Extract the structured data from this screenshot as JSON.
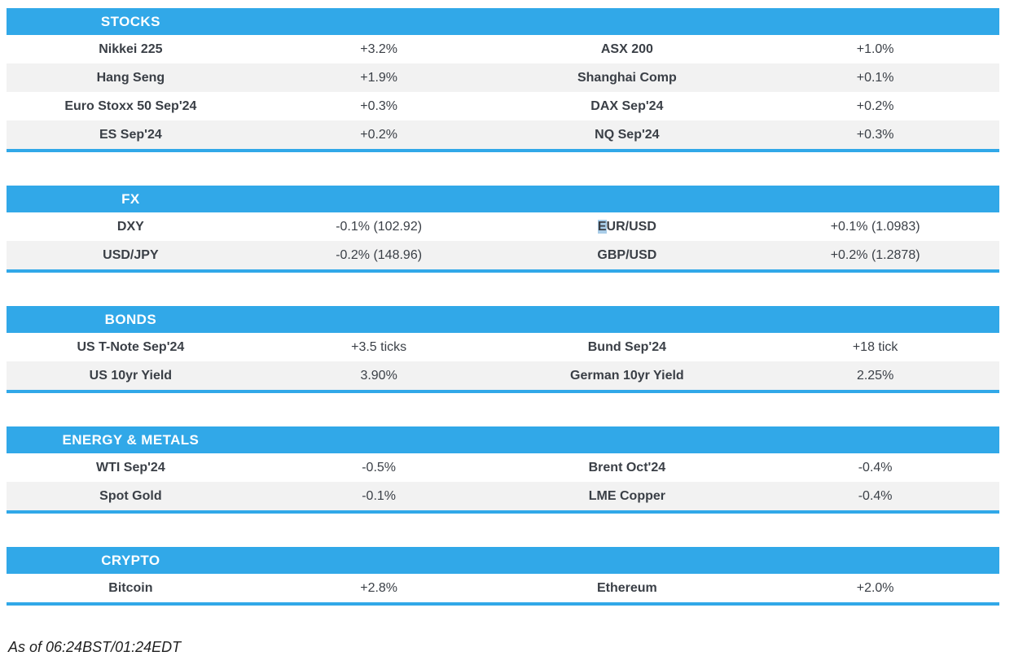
{
  "colors": {
    "accent": "#31a8e8",
    "stripe": "#f2f2f2",
    "text": "#3a3f46",
    "header_text": "#ffffff",
    "selection_highlight": "#a9cde8"
  },
  "sections": [
    {
      "title": "STOCKS",
      "rows": [
        [
          {
            "label": "Nikkei 225",
            "value": "+3.2%"
          },
          {
            "label": "ASX 200",
            "value": "+1.0%"
          }
        ],
        [
          {
            "label": "Hang Seng",
            "value": "+1.9%"
          },
          {
            "label": "Shanghai Comp",
            "value": "+0.1%"
          }
        ],
        [
          {
            "label": "Euro Stoxx 50 Sep'24",
            "value": "+0.3%"
          },
          {
            "label": "DAX Sep'24",
            "value": "+0.2%"
          }
        ],
        [
          {
            "label": "ES Sep'24",
            "value": "+0.2%"
          },
          {
            "label": "NQ Sep'24",
            "value": "+0.3%"
          }
        ]
      ]
    },
    {
      "title": "FX",
      "rows": [
        [
          {
            "label": "DXY",
            "value": "-0.1% (102.92)"
          },
          {
            "label": "EUR/USD",
            "value": "+0.1% (1.0983)",
            "selected_prefix": "E"
          }
        ],
        [
          {
            "label": "USD/JPY",
            "value": "-0.2% (148.96)"
          },
          {
            "label": "GBP/USD",
            "value": "+0.2% (1.2878)"
          }
        ]
      ]
    },
    {
      "title": "BONDS",
      "rows": [
        [
          {
            "label": "US T-Note Sep'24",
            "value": "+3.5 ticks"
          },
          {
            "label": "Bund Sep'24",
            "value": "+18 tick"
          }
        ],
        [
          {
            "label": "US 10yr Yield",
            "value": "3.90%"
          },
          {
            "label": "German 10yr Yield",
            "value": "2.25%"
          }
        ]
      ]
    },
    {
      "title": "ENERGY & METALS",
      "rows": [
        [
          {
            "label": "WTI Sep'24",
            "value": "-0.5%"
          },
          {
            "label": "Brent Oct'24",
            "value": "-0.4%"
          }
        ],
        [
          {
            "label": "Spot Gold",
            "value": "-0.1%"
          },
          {
            "label": "LME Copper",
            "value": "-0.4%"
          }
        ]
      ]
    },
    {
      "title": "CRYPTO",
      "rows": [
        [
          {
            "label": "Bitcoin",
            "value": "+2.8%"
          },
          {
            "label": "Ethereum",
            "value": "+2.0%"
          }
        ]
      ]
    }
  ],
  "footer": "As of 06:24BST/01:24EDT"
}
